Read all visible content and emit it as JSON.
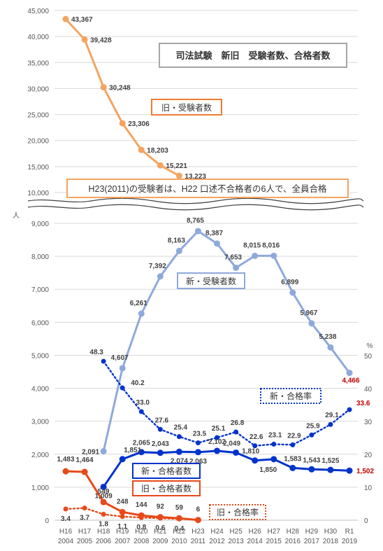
{
  "chart_data": {
    "type": "line",
    "title": "司法試験　新旧　受験者数、合格者数",
    "note": "H23(2011)の受験者は、H22 口述不合格者の6人で、全員合格",
    "y_unit_left": "人",
    "y_unit_right": "%",
    "categories": [
      [
        "H16",
        "2004"
      ],
      [
        "H17",
        "2005"
      ],
      [
        "H18",
        "2006"
      ],
      [
        "H19",
        "2007"
      ],
      [
        "H20",
        "2008"
      ],
      [
        "H21",
        "2009"
      ],
      [
        "H22",
        "2010"
      ],
      [
        "H23",
        "2011"
      ],
      [
        "H24",
        "2012"
      ],
      [
        "H25",
        "2013"
      ],
      [
        "H26",
        "2014"
      ],
      [
        "H27",
        "2015"
      ],
      [
        "H28",
        "2016"
      ],
      [
        "H29",
        "2017"
      ],
      [
        "H30",
        "2018"
      ],
      [
        "R1",
        "2019"
      ]
    ],
    "upper_axis": {
      "ylim": [
        10000,
        45000
      ],
      "ticks": [
        "10,000",
        "15,000",
        "20,000",
        "25,000",
        "30,000",
        "35,000",
        "40,000",
        "45,000"
      ]
    },
    "lower_left_axis": {
      "ylim": [
        0,
        9000
      ],
      "ticks": [
        "0",
        "1,000",
        "2,000",
        "3,000",
        "4,000",
        "5,000",
        "6,000",
        "7,000",
        "8,000",
        "9,000"
      ]
    },
    "lower_right_axis": {
      "ylim": [
        0,
        50
      ],
      "ticks": [
        "0",
        "10",
        "20",
        "30",
        "40",
        "50"
      ]
    },
    "series": [
      {
        "key": "old_examinees",
        "name": "旧・受験者数",
        "axis": "upper",
        "color": "#F4A460",
        "style": "solid",
        "values": [
          43367,
          39428,
          30248,
          23306,
          18203,
          15221,
          13223,
          null,
          null,
          null,
          null,
          null,
          null,
          null,
          null,
          null
        ],
        "labels": [
          "43,367",
          "39,428",
          "30,248",
          "23,306",
          "18,203",
          "15,221",
          "13,223",
          null,
          null,
          null,
          null,
          null,
          null,
          null,
          null,
          null
        ]
      },
      {
        "key": "new_examinees",
        "name": "新・受験者数",
        "axis": "left",
        "color": "#8EA9DB",
        "style": "solid",
        "values": [
          null,
          null,
          2091,
          4607,
          6261,
          7392,
          8163,
          8765,
          8387,
          7653,
          8015,
          8016,
          6899,
          5967,
          5238,
          4466
        ],
        "labels": [
          null,
          null,
          "2,091",
          "4,607",
          "6,261",
          "7,392",
          "8,163",
          "8,765",
          "8,387",
          "7,653",
          "8,015",
          "8,016",
          "6,899",
          "5,967",
          "5,238",
          "4,466"
        ]
      },
      {
        "key": "new_passers",
        "name": "新・合格者数",
        "axis": "left",
        "color": "#0033CC",
        "style": "solid",
        "values": [
          null,
          null,
          1009,
          1851,
          2065,
          2043,
          2074,
          2063,
          2102,
          2049,
          1810,
          1850,
          1583,
          1543,
          1525,
          1502
        ],
        "labels": [
          null,
          null,
          "1,009",
          "1,851",
          "2,065",
          "2,043",
          "2,074",
          "2,063",
          "2,102",
          "2,049",
          "1,810",
          "1,850",
          "1,583",
          "1,543",
          "1,525",
          "1,502"
        ]
      },
      {
        "key": "old_passers",
        "name": "旧・合格者数",
        "axis": "left",
        "color": "#E64A19",
        "style": "solid",
        "values": [
          1483,
          1464,
          549,
          248,
          144,
          92,
          59,
          6,
          null,
          null,
          null,
          null,
          null,
          null,
          null,
          null
        ],
        "labels": [
          "1,483",
          "1,464",
          "549",
          "248",
          "144",
          "92",
          "59",
          "6",
          null,
          null,
          null,
          null,
          null,
          null,
          null,
          null
        ]
      },
      {
        "key": "new_pass_rate",
        "name": "新・合格率",
        "axis": "right",
        "color": "#0033CC",
        "style": "dotted",
        "values": [
          null,
          null,
          48.3,
          40.2,
          33.0,
          27.6,
          25.4,
          23.5,
          25.1,
          26.8,
          22.6,
          23.1,
          22.9,
          25.9,
          29.1,
          33.6
        ],
        "labels": [
          null,
          null,
          "48.3",
          "40.2",
          "33.0",
          "27.6",
          "25.4",
          "23.5",
          "25.1",
          "26.8",
          "22.6",
          "23.1",
          "22.9",
          "25.9",
          "29.1",
          "33.6"
        ]
      },
      {
        "key": "old_pass_rate",
        "name": "旧・合格率",
        "axis": "right",
        "color": "#E64A19",
        "style": "dotted",
        "values": [
          3.4,
          3.7,
          1.8,
          1.1,
          0.8,
          0.6,
          0.4,
          null,
          null,
          null,
          null,
          null,
          null,
          null,
          null,
          null
        ],
        "labels": [
          "3.4",
          "3.7",
          "1.8",
          "1.1",
          "0.8",
          "0.6",
          "0.4",
          null,
          null,
          null,
          null,
          null,
          null,
          null,
          null,
          null
        ]
      }
    ],
    "highlight_color": "#C00000"
  }
}
